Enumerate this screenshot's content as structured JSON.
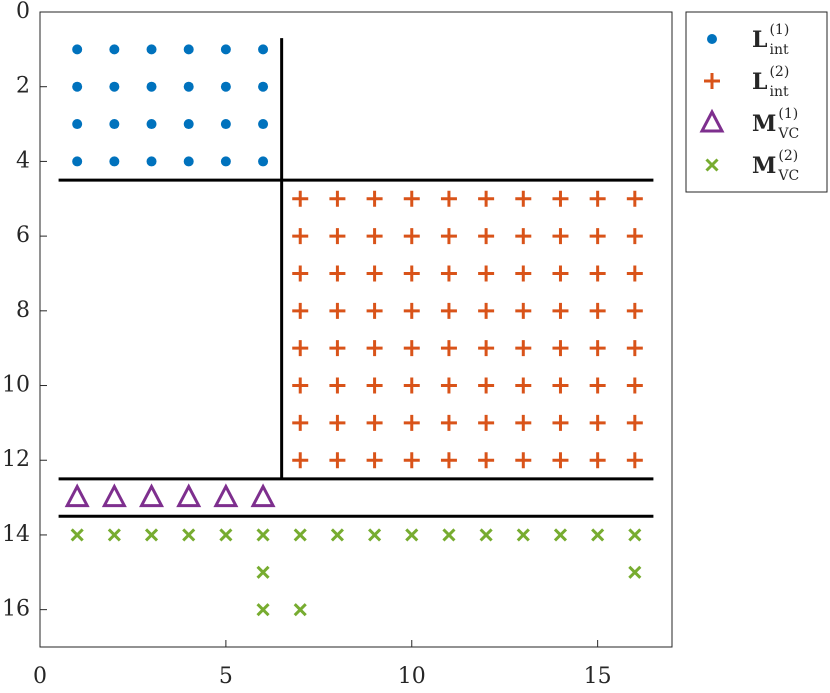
{
  "chart_data": {
    "type": "scatter",
    "xlim": [
      0,
      17
    ],
    "ylim": [
      0,
      17
    ],
    "y_reverse": true,
    "xticks": [
      0,
      5,
      10,
      15
    ],
    "yticks": [
      0,
      2,
      4,
      6,
      8,
      10,
      12,
      14,
      16
    ],
    "legend": "outside-top-right",
    "series": [
      {
        "name": "L",
        "name_sub": "int",
        "name_sup": "(1)",
        "color": "#0072bd",
        "marker": "dot",
        "x": [
          1,
          2,
          3,
          4,
          5,
          6,
          1,
          2,
          3,
          4,
          5,
          6,
          1,
          2,
          3,
          4,
          5,
          6,
          1,
          2,
          3,
          4,
          5,
          6
        ],
        "y": [
          1,
          1,
          1,
          1,
          1,
          1,
          2,
          2,
          2,
          2,
          2,
          2,
          3,
          3,
          3,
          3,
          3,
          3,
          4,
          4,
          4,
          4,
          4,
          4
        ]
      },
      {
        "name": "L",
        "name_sub": "int",
        "name_sup": "(2)",
        "color": "#d95319",
        "marker": "plus",
        "x": [
          7,
          8,
          9,
          10,
          11,
          12,
          13,
          14,
          15,
          16,
          7,
          8,
          9,
          10,
          11,
          12,
          13,
          14,
          15,
          16,
          7,
          8,
          9,
          10,
          11,
          12,
          13,
          14,
          15,
          16,
          7,
          8,
          9,
          10,
          11,
          12,
          13,
          14,
          15,
          16,
          7,
          8,
          9,
          10,
          11,
          12,
          13,
          14,
          15,
          16,
          7,
          8,
          9,
          10,
          11,
          12,
          13,
          14,
          15,
          16,
          7,
          8,
          9,
          10,
          11,
          12,
          13,
          14,
          15,
          16,
          7,
          8,
          9,
          10,
          11,
          12,
          13,
          14,
          15,
          16
        ],
        "y": [
          5,
          5,
          5,
          5,
          5,
          5,
          5,
          5,
          5,
          5,
          6,
          6,
          6,
          6,
          6,
          6,
          6,
          6,
          6,
          6,
          7,
          7,
          7,
          7,
          7,
          7,
          7,
          7,
          7,
          7,
          8,
          8,
          8,
          8,
          8,
          8,
          8,
          8,
          8,
          8,
          9,
          9,
          9,
          9,
          9,
          9,
          9,
          9,
          9,
          9,
          10,
          10,
          10,
          10,
          10,
          10,
          10,
          10,
          10,
          10,
          11,
          11,
          11,
          11,
          11,
          11,
          11,
          11,
          11,
          11,
          12,
          12,
          12,
          12,
          12,
          12,
          12,
          12,
          12,
          12
        ]
      },
      {
        "name": "M",
        "name_sub": "VC",
        "name_sup": "(1)",
        "color": "#7e2f8e",
        "marker": "triangle",
        "x": [
          1,
          2,
          3,
          4,
          5,
          6
        ],
        "y": [
          13,
          13,
          13,
          13,
          13,
          13
        ]
      },
      {
        "name": "M",
        "name_sub": "VC",
        "name_sup": "(2)",
        "color": "#77ac30",
        "marker": "cross",
        "x": [
          1,
          2,
          3,
          4,
          5,
          6,
          7,
          8,
          9,
          10,
          11,
          12,
          13,
          14,
          15,
          16,
          6,
          16,
          6,
          7
        ],
        "y": [
          14,
          14,
          14,
          14,
          14,
          14,
          14,
          14,
          14,
          14,
          14,
          14,
          14,
          14,
          14,
          14,
          15,
          15,
          16,
          16
        ]
      }
    ],
    "lines": [
      {
        "x": [
          0.5,
          16.5
        ],
        "y": [
          4.5,
          4.5
        ]
      },
      {
        "x": [
          6.5,
          6.5
        ],
        "y": [
          0.7,
          12.5
        ]
      },
      {
        "x": [
          0.5,
          16.5
        ],
        "y": [
          12.5,
          12.5
        ]
      },
      {
        "x": [
          0.5,
          16.5
        ],
        "y": [
          13.5,
          13.5
        ]
      }
    ]
  }
}
